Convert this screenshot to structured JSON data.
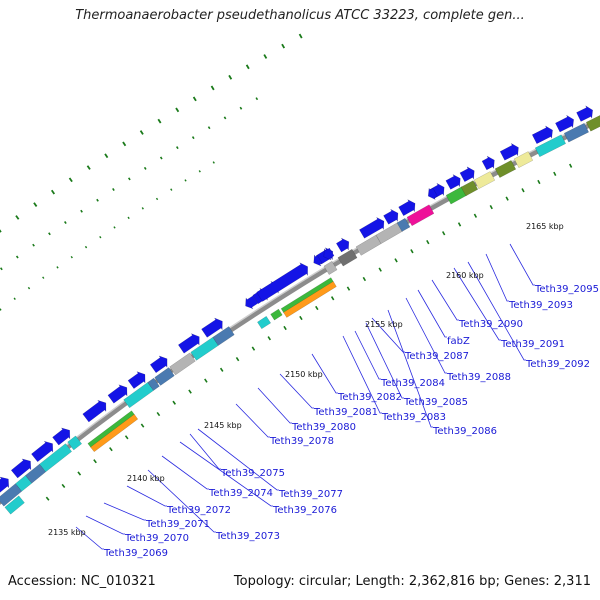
{
  "title": "Thermoanaerobacter pseudethanolicus ATCC 33223, complete gen...",
  "footer": {
    "accession": "Accession: NC_010321",
    "topology": "Topology: circular; Length: 2,362,816 bp; Genes: 2,311"
  },
  "colors": {
    "backbone": "#8c8c8c",
    "cds": "#1414e6",
    "cyan": "#22cccc",
    "orange": "#ff9a1a",
    "green": "#3cb83c",
    "olive": "#6f8f2a",
    "lightyellow": "#eeea9a",
    "grey": "#b4b4b4",
    "darkgrey": "#707070",
    "magenta": "#ee1199",
    "steelblue": "#4a7ab0",
    "tick": "#1a7a1a",
    "label": "#1a1ad6",
    "leader": "#2a2ae0"
  },
  "kbp_labels": [
    "2135 kbp",
    "2140 kbp",
    "2145 kbp",
    "2150 kbp",
    "2155 kbp",
    "2160 kbp",
    "2165 kbp"
  ],
  "gene_labels": [
    "Teth39_2069",
    "Teth39_2070",
    "Teth39_2071",
    "Teth39_2072",
    "Teth39_2073",
    "Teth39_2074",
    "Teth39_2075",
    "Teth39_2076",
    "Teth39_2077",
    "Teth39_2078",
    "Teth39_2080",
    "Teth39_2081",
    "Teth39_2082",
    "Teth39_2083",
    "Teth39_2084",
    "Teth39_2085",
    "Teth39_2086",
    "Teth39_2087",
    "fabZ",
    "Teth39_2088",
    "Teth39_2090",
    "Teth39_2091",
    "Teth39_2092",
    "Teth39_2093",
    "Teth39_2095"
  ]
}
